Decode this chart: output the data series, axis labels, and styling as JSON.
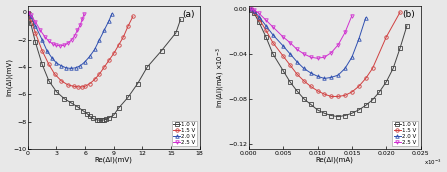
{
  "panel_a": {
    "title": "(a)",
    "xlabel": "Re(ΔI)(mV)",
    "ylabel": "Im(ΔI)(mV)",
    "xlim": [
      0,
      18
    ],
    "ylim": [
      -10,
      0.5
    ],
    "xticks": [
      0,
      3,
      6,
      9,
      12,
      15,
      18
    ],
    "yticks": [
      0,
      -2,
      -4,
      -6,
      -8,
      -10
    ],
    "series": {
      "1.0V": {
        "color": "#444444",
        "marker": "s",
        "re": [
          0.05,
          0.3,
          0.8,
          1.5,
          2.2,
          3.0,
          3.8,
          4.5,
          5.2,
          5.8,
          6.2,
          6.5,
          6.8,
          7.2,
          7.5,
          7.8,
          8.0,
          8.2,
          8.5,
          9.0,
          9.5,
          10.5,
          11.5,
          12.5,
          14.0,
          15.5,
          16.0
        ],
        "im": [
          -0.05,
          -0.8,
          -2.2,
          -3.8,
          -5.0,
          -5.8,
          -6.3,
          -6.6,
          -6.9,
          -7.2,
          -7.4,
          -7.6,
          -7.75,
          -7.85,
          -7.88,
          -7.88,
          -7.85,
          -7.82,
          -7.7,
          -7.5,
          -7.0,
          -6.2,
          -5.2,
          -4.0,
          -2.8,
          -1.5,
          -0.5
        ]
      },
      "1.5V": {
        "color": "#d04040",
        "marker": "o",
        "re": [
          0.05,
          0.3,
          0.8,
          1.5,
          2.2,
          2.8,
          3.5,
          4.2,
          4.8,
          5.3,
          5.7,
          6.0,
          6.5,
          7.0,
          7.5,
          8.0,
          8.5,
          9.0,
          9.5,
          10.0,
          10.5,
          11.0
        ],
        "im": [
          -0.03,
          -0.5,
          -1.5,
          -2.8,
          -3.8,
          -4.5,
          -5.0,
          -5.3,
          -5.4,
          -5.45,
          -5.45,
          -5.4,
          -5.2,
          -4.9,
          -4.5,
          -4.0,
          -3.5,
          -3.0,
          -2.4,
          -1.8,
          -1.0,
          -0.3
        ]
      },
      "2.0V": {
        "color": "#3050b0",
        "marker": "^",
        "re": [
          0.05,
          0.3,
          0.8,
          1.5,
          2.0,
          2.5,
          3.0,
          3.5,
          4.0,
          4.5,
          5.0,
          5.5,
          6.0,
          6.5,
          7.0,
          7.5,
          8.0,
          8.5,
          8.8
        ],
        "im": [
          -0.02,
          -0.3,
          -1.0,
          -2.0,
          -2.8,
          -3.3,
          -3.7,
          -3.9,
          -4.05,
          -4.1,
          -4.05,
          -3.9,
          -3.6,
          -3.2,
          -2.7,
          -2.0,
          -1.3,
          -0.6,
          -0.1
        ]
      },
      "2.5V": {
        "color": "#d030d0",
        "marker": "v",
        "re": [
          0.05,
          0.3,
          0.8,
          1.3,
          1.8,
          2.2,
          2.6,
          3.0,
          3.4,
          3.8,
          4.2,
          4.6,
          4.9,
          5.2,
          5.5,
          5.7,
          5.9
        ],
        "im": [
          -0.01,
          -0.2,
          -0.7,
          -1.3,
          -1.8,
          -2.1,
          -2.3,
          -2.4,
          -2.45,
          -2.4,
          -2.25,
          -2.0,
          -1.7,
          -1.3,
          -0.9,
          -0.5,
          -0.1
        ]
      }
    }
  },
  "panel_b": {
    "title": "(b)",
    "xlabel": "Re(ΔI)(mA)",
    "ylabel": "Im(ΔI)(mA) ×10⁻³",
    "xlim": [
      0,
      0.025
    ],
    "ylim": [
      -0.125,
      0.003
    ],
    "xtick_vals": [
      0.0,
      0.005,
      0.01,
      0.015,
      0.02,
      0.025
    ],
    "xtick_labels": [
      "0.000",
      "0.005",
      "0.010",
      "0.015",
      "0.020",
      "0.025x10⁻³"
    ],
    "yticks": [
      0.0,
      -0.04,
      -0.08,
      -0.12
    ],
    "series": {
      "1.0V": {
        "color": "#444444",
        "marker": "s",
        "re": [
          0.0003,
          0.0008,
          0.0015,
          0.0025,
          0.0035,
          0.005,
          0.006,
          0.007,
          0.008,
          0.009,
          0.01,
          0.011,
          0.012,
          0.013,
          0.014,
          0.015,
          0.016,
          0.017,
          0.018,
          0.019,
          0.02,
          0.021,
          0.022,
          0.023
        ],
        "im": [
          -0.001,
          -0.004,
          -0.012,
          -0.025,
          -0.04,
          -0.055,
          -0.065,
          -0.073,
          -0.08,
          -0.085,
          -0.09,
          -0.093,
          -0.095,
          -0.096,
          -0.095,
          -0.093,
          -0.09,
          -0.086,
          -0.081,
          -0.074,
          -0.065,
          -0.053,
          -0.035,
          -0.015
        ]
      },
      "1.5V": {
        "color": "#d04040",
        "marker": "o",
        "re": [
          0.0003,
          0.0008,
          0.0015,
          0.0025,
          0.0035,
          0.005,
          0.006,
          0.007,
          0.008,
          0.009,
          0.01,
          0.011,
          0.012,
          0.013,
          0.014,
          0.015,
          0.016,
          0.017,
          0.018,
          0.02,
          0.022
        ],
        "im": [
          -0.0005,
          -0.003,
          -0.009,
          -0.019,
          -0.03,
          -0.042,
          -0.05,
          -0.058,
          -0.064,
          -0.069,
          -0.073,
          -0.076,
          -0.078,
          -0.078,
          -0.077,
          -0.074,
          -0.069,
          -0.062,
          -0.053,
          -0.025,
          -0.003
        ]
      },
      "2.0V": {
        "color": "#3050b0",
        "marker": "^",
        "re": [
          0.0003,
          0.0008,
          0.0015,
          0.0025,
          0.0035,
          0.005,
          0.006,
          0.007,
          0.008,
          0.009,
          0.01,
          0.011,
          0.012,
          0.013,
          0.014,
          0.015,
          0.016,
          0.017
        ],
        "im": [
          -0.0004,
          -0.002,
          -0.007,
          -0.015,
          -0.023,
          -0.033,
          -0.04,
          -0.047,
          -0.053,
          -0.057,
          -0.06,
          -0.062,
          -0.061,
          -0.059,
          -0.053,
          -0.043,
          -0.027,
          -0.008
        ]
      },
      "2.5V": {
        "color": "#d030d0",
        "marker": "v",
        "re": [
          0.0003,
          0.0008,
          0.0015,
          0.0025,
          0.0035,
          0.005,
          0.006,
          0.007,
          0.008,
          0.009,
          0.01,
          0.011,
          0.012,
          0.013,
          0.014,
          0.015
        ],
        "im": [
          -0.0002,
          -0.001,
          -0.004,
          -0.01,
          -0.016,
          -0.025,
          -0.03,
          -0.036,
          -0.04,
          -0.043,
          -0.044,
          -0.043,
          -0.039,
          -0.032,
          -0.021,
          -0.006
        ]
      }
    }
  },
  "legend_labels": [
    "1.0 V",
    "1.5 V",
    "2.0 V",
    "2.5 V"
  ],
  "legend_colors": [
    "#444444",
    "#d04040",
    "#3050b0",
    "#d030d0"
  ],
  "legend_markers": [
    "s",
    "o",
    "^",
    "v"
  ],
  "bg_color": "#e8e8e8"
}
